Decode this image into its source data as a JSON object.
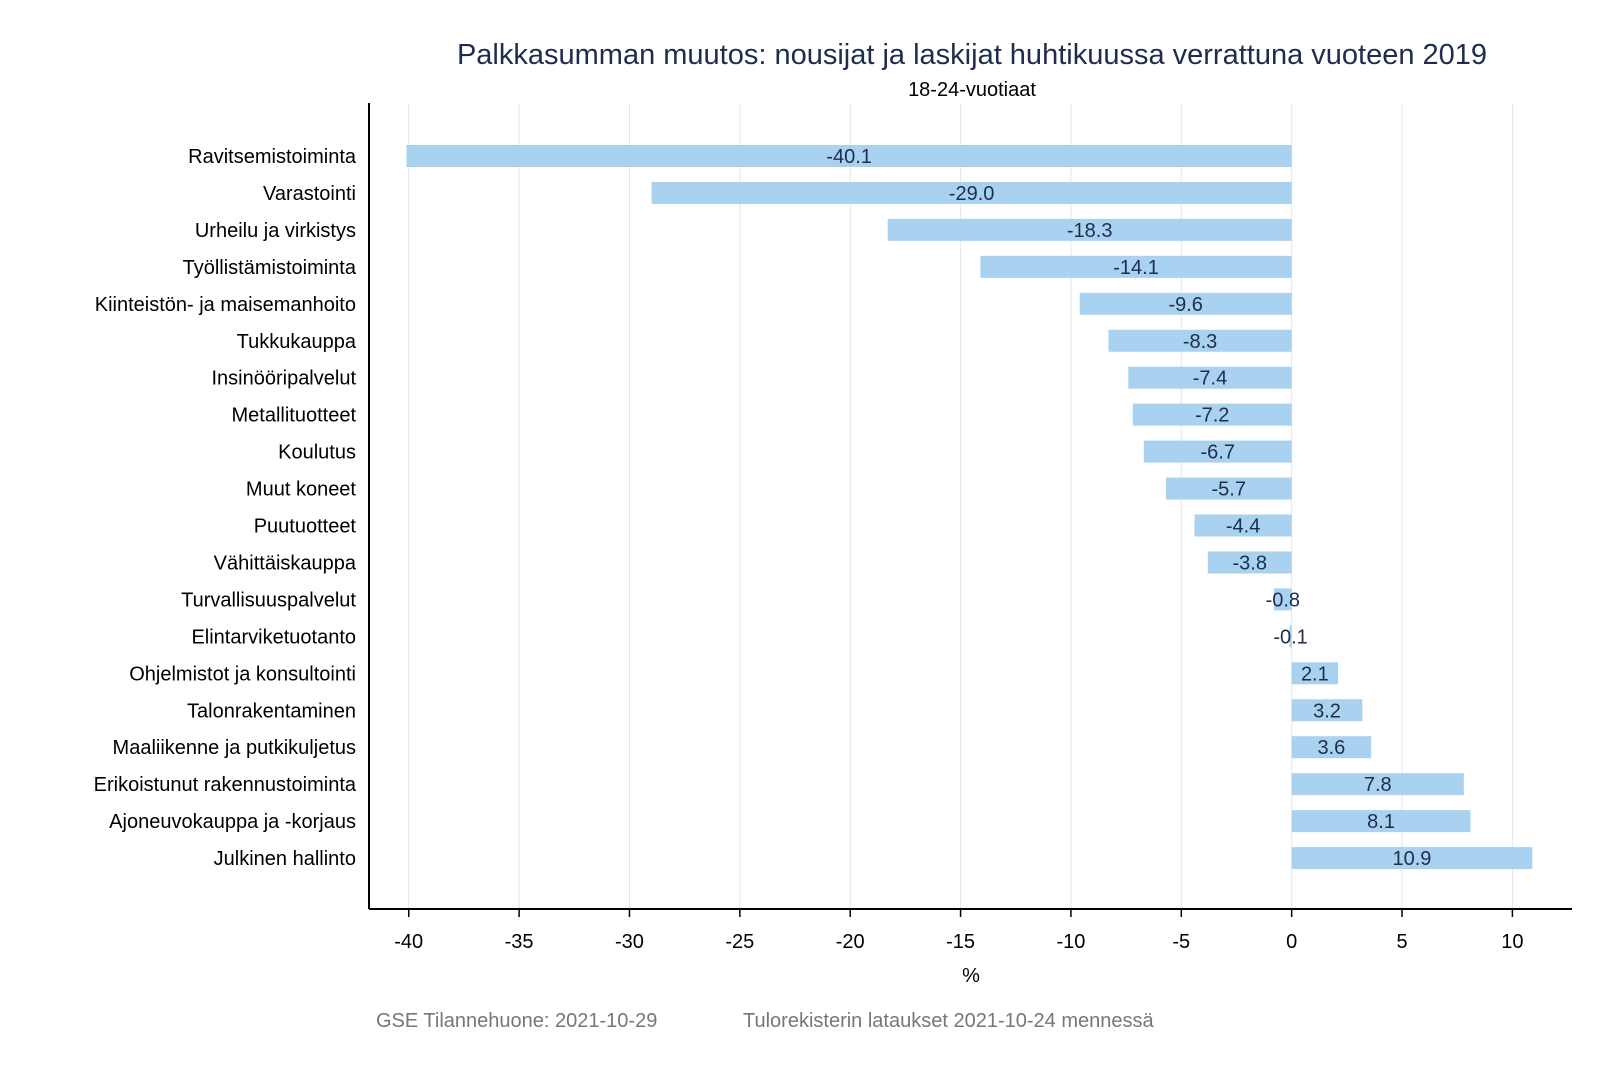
{
  "chart_data": {
    "type": "bar",
    "orientation": "horizontal",
    "title": "Palkkasumman muutos: nousijat ja laskijat huhtikuussa verrattuna vuoteen 2019",
    "subtitle": "18-24-vuotiaat",
    "xlabel": "%",
    "ylabel": "",
    "xlim": [
      -41.8,
      12.7
    ],
    "xticks": [
      -40,
      -35,
      -30,
      -25,
      -20,
      -15,
      -10,
      -5,
      0,
      5,
      10
    ],
    "grid": "vertical",
    "legend": "none",
    "categories": [
      "Ravitsemistoiminta",
      "Varastointi",
      "Urheilu ja virkistys",
      "Työllistämistoiminta",
      "Kiinteistön- ja maisemanhoito",
      "Tukkukauppa",
      "Insinööripalvelut",
      "Metallituotteet",
      "Koulutus",
      "Muut koneet",
      "Puutuotteet",
      "Vähittäiskauppa",
      "Turvallisuuspalvelut",
      "Elintarviketuotanto",
      "Ohjelmistot ja konsultointi",
      "Talonrakentaminen",
      "Maaliikenne ja putkikuljetus",
      "Erikoistunut rakennustoiminta",
      "Ajoneuvokauppa ja -korjaus",
      "Julkinen hallinto"
    ],
    "values": [
      -40.1,
      -29.0,
      -18.3,
      -14.1,
      -9.6,
      -8.3,
      -7.4,
      -7.2,
      -6.7,
      -5.7,
      -4.4,
      -3.8,
      -0.8,
      -0.1,
      2.1,
      3.2,
      3.6,
      7.8,
      8.1,
      10.9
    ],
    "value_labels": [
      "-40.1",
      "-29.0",
      "-18.3",
      "-14.1",
      "-9.6",
      "-8.3",
      "-7.4",
      "-7.2",
      "-6.7",
      "-5.7",
      "-4.4",
      "-3.8",
      "-0.8",
      "-0.1",
      "2.1",
      "3.2",
      "3.6",
      "7.8",
      "8.1",
      "10.9"
    ],
    "bar_color": "#a9d2f0",
    "label_color": "#1f2d4d",
    "title_color": "#1f2d4d"
  },
  "footer": {
    "source": "GSE Tilannehuone: 2021-10-29",
    "note": "Tulorekisterin lataukset 2021-10-24 mennessä"
  }
}
